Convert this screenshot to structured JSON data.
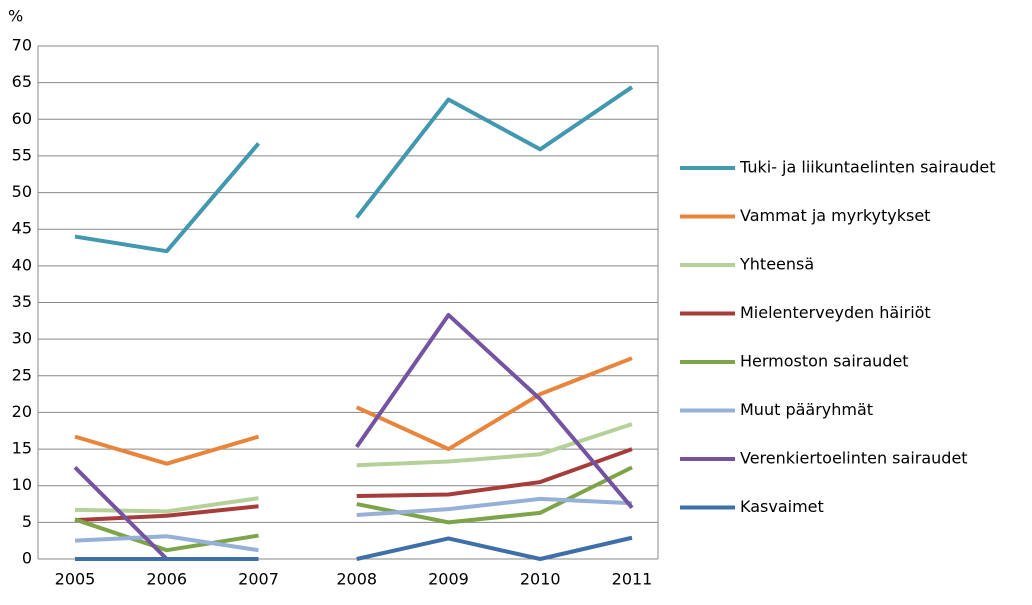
{
  "chart_data": {
    "type": "line",
    "y_label": "%",
    "categories": [
      "2005",
      "2006",
      "2007",
      null,
      "2008",
      "2009",
      "2010",
      "2011"
    ],
    "ylim": [
      0,
      70
    ],
    "yticks": [
      0,
      5,
      10,
      15,
      20,
      25,
      30,
      35,
      40,
      45,
      50,
      55,
      60,
      65,
      70
    ],
    "grid": true,
    "series": [
      {
        "name": "Tuki- ja liikuntaelinten sairaudet",
        "color": "#4198af",
        "values": [
          44,
          42,
          56.7,
          null,
          46.6,
          62.7,
          55.9,
          64.4
        ]
      },
      {
        "name": "Vammat ja myrkytykset",
        "color": "#e8853a",
        "values": [
          16.7,
          13,
          16.7,
          null,
          20.7,
          15,
          22.5,
          27.4
        ]
      },
      {
        "name": "Yhteensä",
        "color": "#b6d09a",
        "values": [
          6.7,
          6.5,
          8.3,
          null,
          12.8,
          13.3,
          14.3,
          18.4
        ]
      },
      {
        "name": "Mielenterveyden häiriöt",
        "color": "#a63d3a",
        "values": [
          5.3,
          5.9,
          7.2,
          null,
          8.6,
          8.8,
          10.5,
          15
        ]
      },
      {
        "name": "Hermoston sairaudet",
        "color": "#7ea44a",
        "values": [
          5.4,
          1.2,
          3.2,
          null,
          7.5,
          5,
          6.3,
          12.5
        ]
      },
      {
        "name": "Muut pääryhmät",
        "color": "#96b0d8",
        "values": [
          2.5,
          3.1,
          1.2,
          null,
          6,
          6.8,
          8.2,
          7.6
        ]
      },
      {
        "name": "Verenkiertoelinten sairaudet",
        "color": "#7453a0",
        "values": [
          12.5,
          0,
          0,
          null,
          15.3,
          33.3,
          21.8,
          7
        ]
      },
      {
        "name": "Kasvaimet",
        "color": "#3e6fa8",
        "values": [
          0,
          0,
          0,
          null,
          0,
          2.8,
          0,
          2.9
        ]
      }
    ]
  }
}
